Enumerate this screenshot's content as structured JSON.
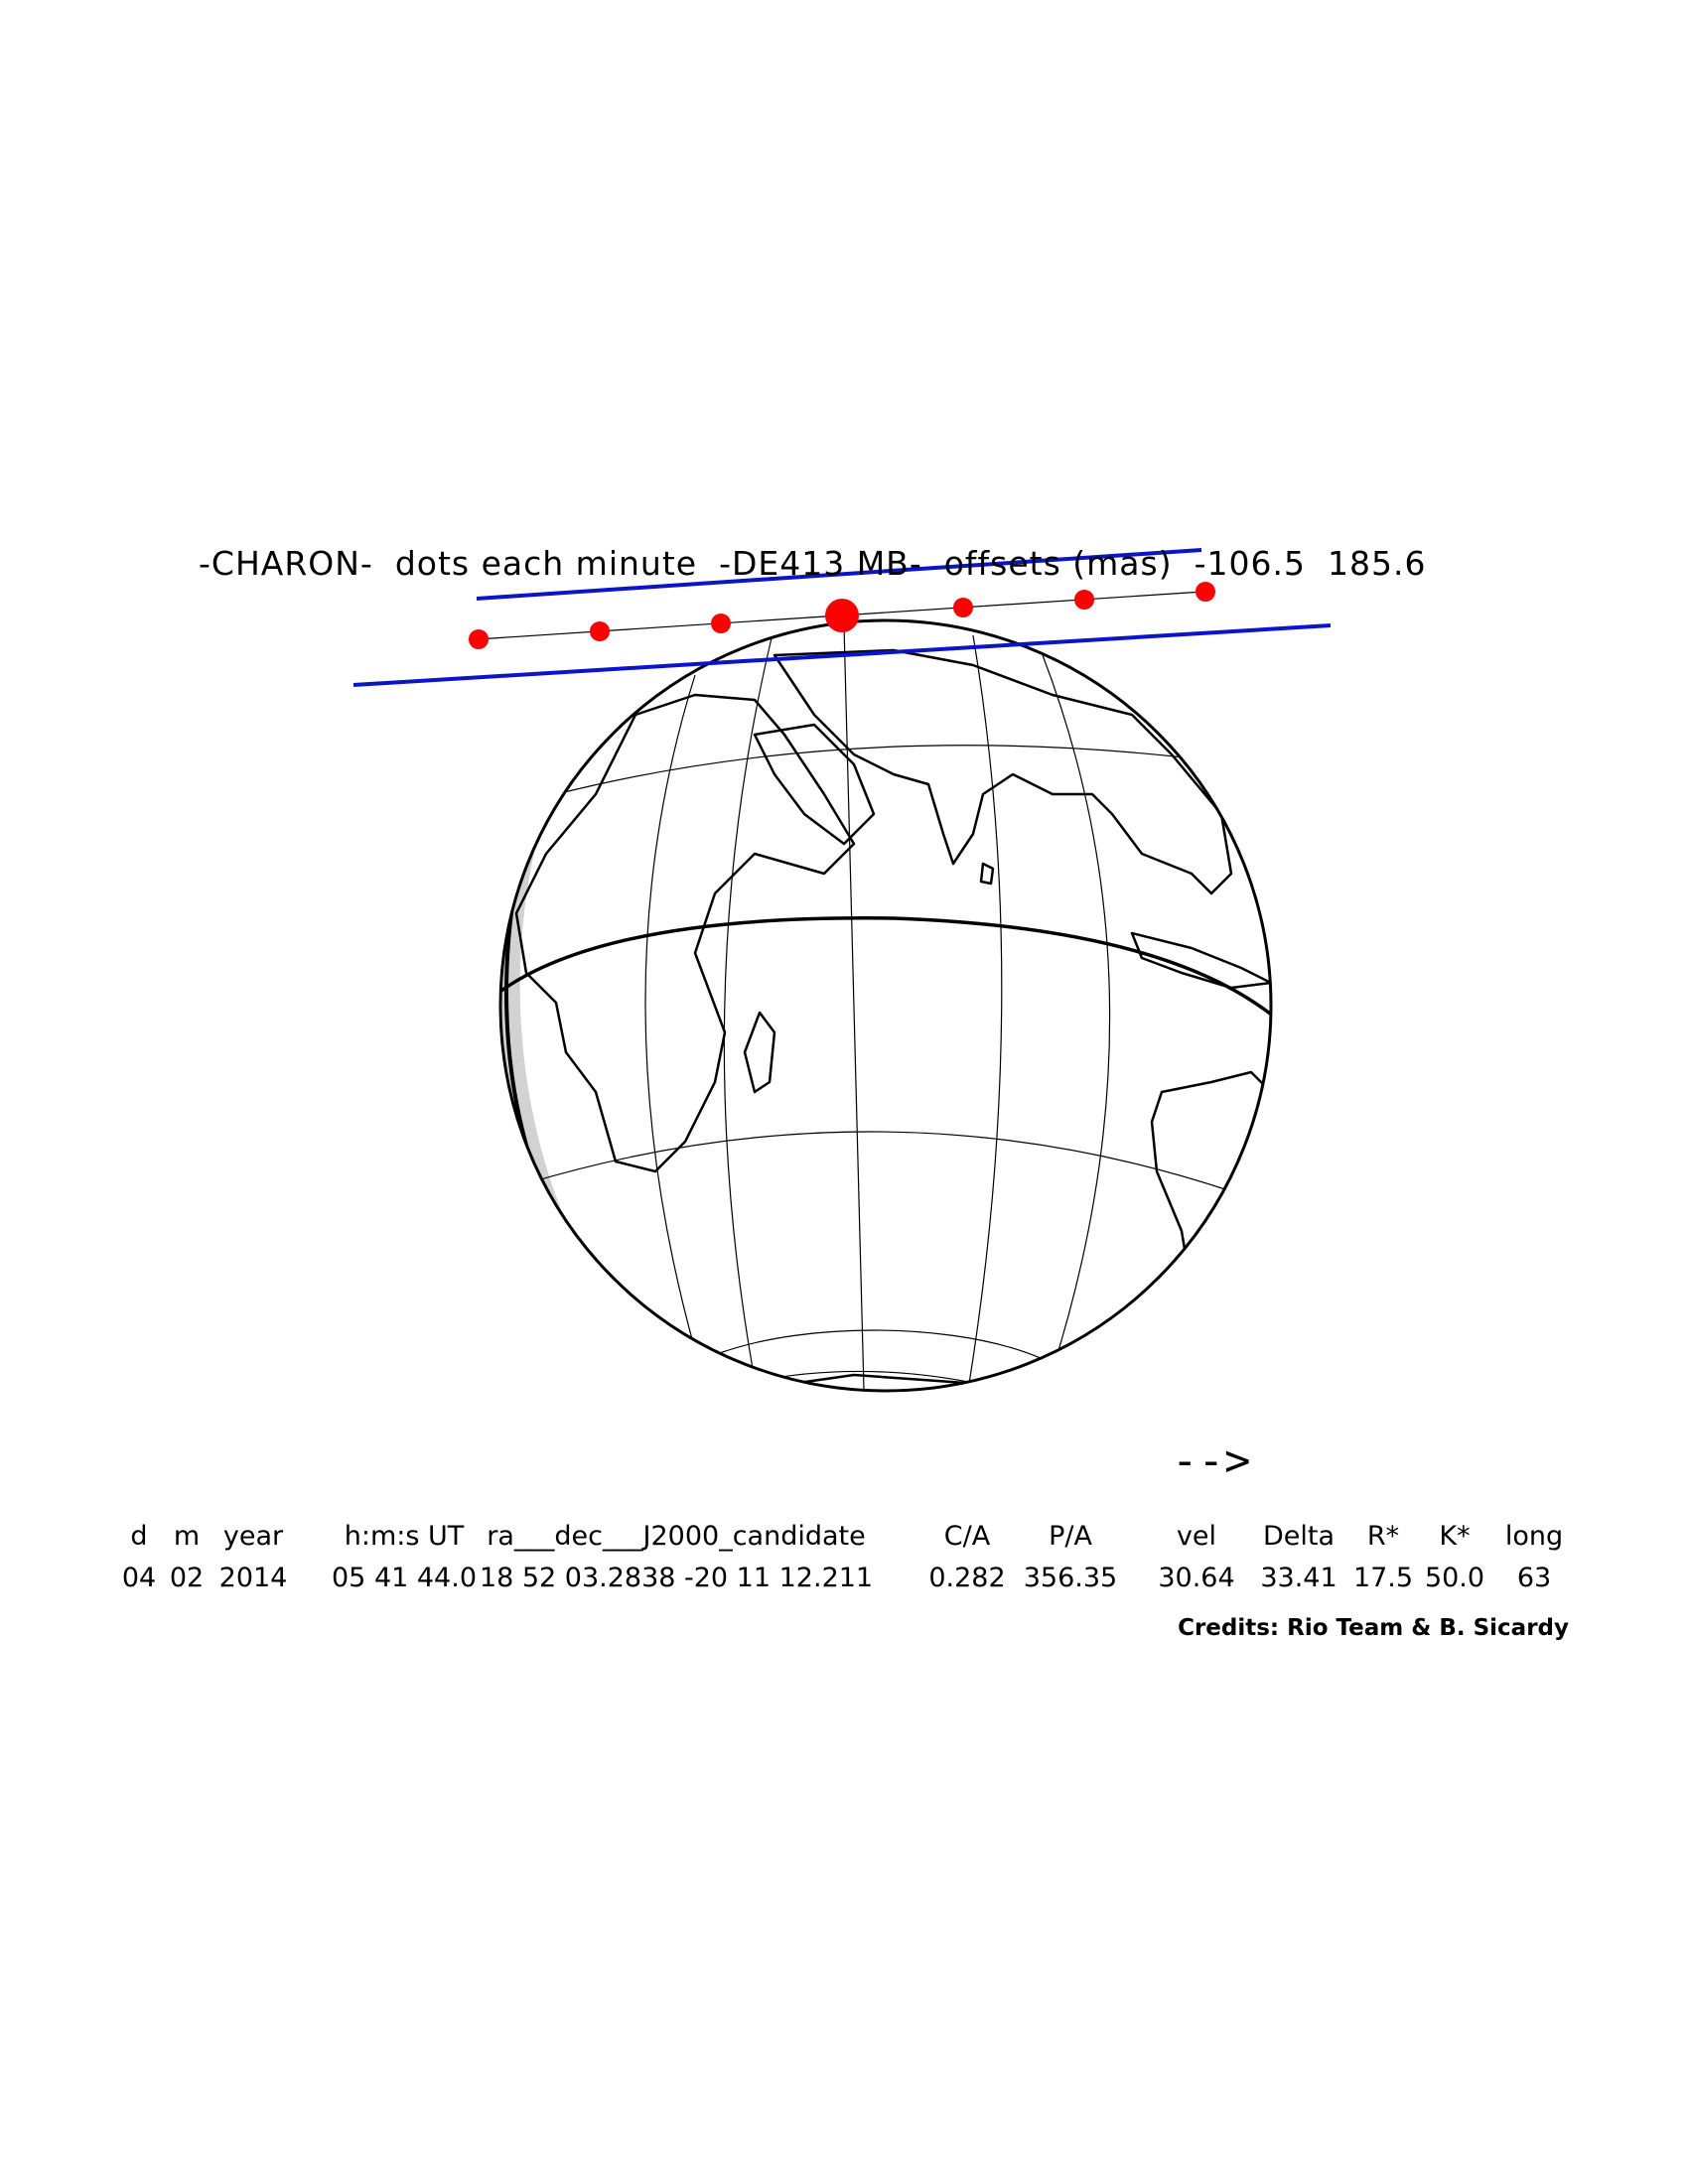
{
  "title": {
    "object": "-CHARON-",
    "dots": "dots each minute",
    "star": "-DE413 MB-",
    "offsets_label": "offsets (mas)",
    "offset_ra": "-106.5",
    "offset_dec": "185.6"
  },
  "table": {
    "headers": [
      "d",
      "m",
      "year",
      "h:m:s UT",
      "ra___dec___J2000_candidate",
      "C/A",
      "P/A",
      "vel",
      "Delta",
      "R*",
      "K*",
      "long"
    ],
    "values": [
      "04",
      "02",
      "2014",
      "05 41 44.0",
      "18 52 03.2838 -20 11 12.211",
      "0.282",
      "356.35",
      "30.64",
      "33.41",
      "17.5",
      "50.0",
      "63"
    ]
  },
  "credits": "Credits: Rio Team & B. Sicardy",
  "direction_arrow": "-->",
  "map": {
    "central_longitude_deg": 63,
    "track_dots": 7,
    "colors": {
      "track_limits": "#0a14c8",
      "dots": "#ff0000",
      "night_shade": "#d2d2d2",
      "twilight_shade": "#bdbdbd",
      "coastlines": "#000000",
      "graticule": "#000000"
    }
  }
}
